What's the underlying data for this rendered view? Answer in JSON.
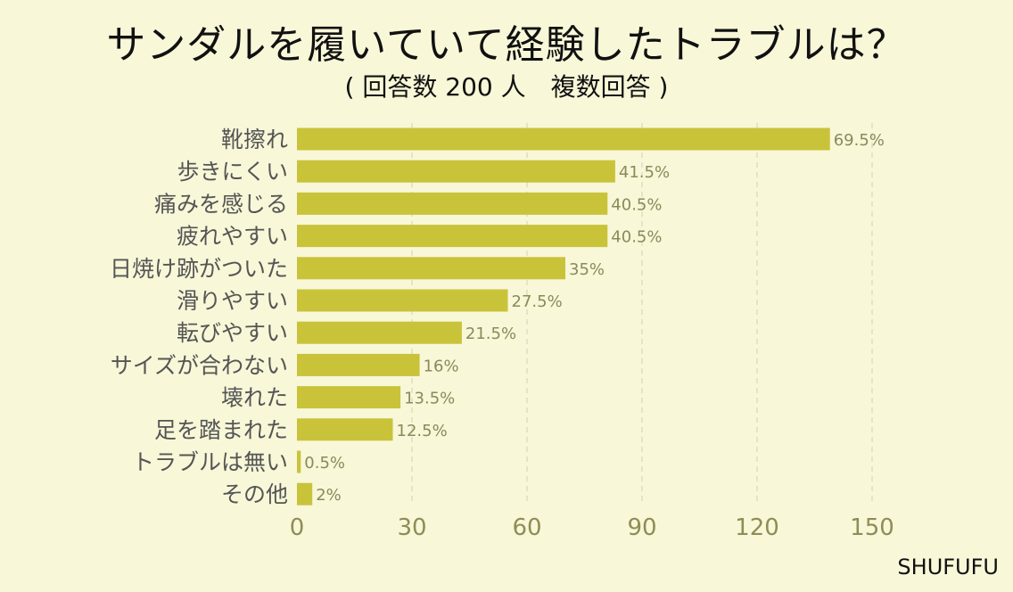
{
  "title": "サンダルを履いていて経験したトラブルは？",
  "subtitle": "( 回答数 200 人　複数回答 )",
  "brand": "SHUFUFU",
  "colors": {
    "background": "#f8f7d8",
    "bar": "#c9c33a",
    "grid": "#d9d8bd"
  },
  "chart_data": {
    "type": "bar",
    "orientation": "horizontal",
    "categories": [
      "靴擦れ",
      "歩きにくい",
      "痛みを感じる",
      "疲れやすい",
      "日焼け跡がついた",
      "滑りやすい",
      "転びやすい",
      "サイズが合わない",
      "壊れた",
      "足を踏まれた",
      "トラブルは無い",
      "その他"
    ],
    "values": [
      139,
      83,
      81,
      81,
      70,
      55,
      43,
      32,
      27,
      25,
      1,
      4
    ],
    "value_labels": [
      "69.5%",
      "41.5%",
      "40.5%",
      "40.5%",
      "35%",
      "27.5%",
      "21.5%",
      "16%",
      "13.5%",
      "12.5%",
      "0.5%",
      "2%"
    ],
    "xlim": [
      0,
      150
    ],
    "xticks": [
      0,
      30,
      60,
      90,
      120,
      150
    ],
    "grid": true
  }
}
